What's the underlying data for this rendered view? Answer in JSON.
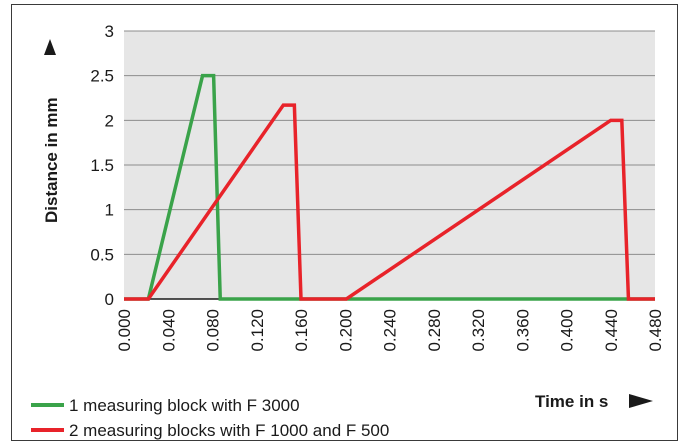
{
  "chart_data": {
    "type": "line",
    "xlabel": "Time in s",
    "ylabel": "Distance in mm",
    "xlim": [
      0.0,
      0.48
    ],
    "ylim": [
      0,
      3
    ],
    "x_ticks": [
      "0.000",
      "0.040",
      "0.080",
      "0.120",
      "0.160",
      "0.200",
      "0.240",
      "0.280",
      "0.320",
      "0.360",
      "0.400",
      "0.440",
      "0.480"
    ],
    "y_ticks": [
      "0",
      "0.5",
      "1",
      "1.5",
      "2",
      "2.5",
      "3"
    ],
    "grid": "horizontal",
    "legend_position": "bottom-left",
    "background_color": "#e6e6e6",
    "series": [
      {
        "name": "1 measuring block with F 3000",
        "color": "#3aa34a",
        "points": [
          [
            0.0,
            0
          ],
          [
            0.022,
            0
          ],
          [
            0.071,
            2.5
          ],
          [
            0.081,
            2.5
          ],
          [
            0.087,
            0
          ],
          [
            0.48,
            0
          ]
        ]
      },
      {
        "name": "2 measuring blocks with F 1000 and F 500",
        "color": "#e8232a",
        "points": [
          [
            0.0,
            0
          ],
          [
            0.022,
            0
          ],
          [
            0.144,
            2.17
          ],
          [
            0.154,
            2.17
          ],
          [
            0.16,
            0
          ],
          [
            0.201,
            0
          ],
          [
            0.44,
            2.0
          ],
          [
            0.45,
            2.0
          ],
          [
            0.456,
            0
          ],
          [
            0.48,
            0
          ]
        ]
      }
    ]
  }
}
